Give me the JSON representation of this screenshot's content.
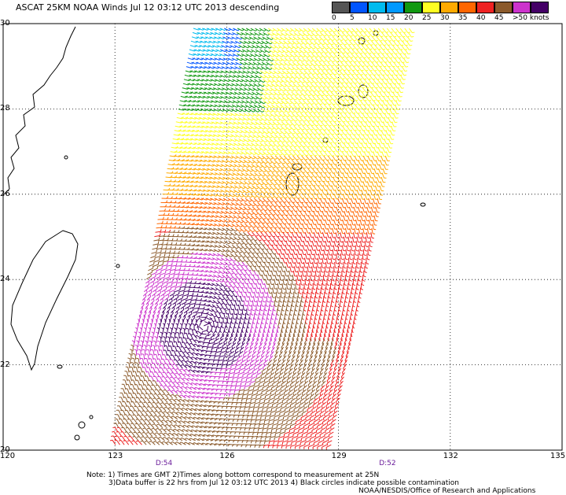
{
  "header": {
    "title": "ASCAT 25KM NOAA Winds  Jul 12 03:12 UTC 2013 descending"
  },
  "legend": {
    "unit": "knots",
    "bins": [
      {
        "label": "0",
        "color": "#555555"
      },
      {
        "label": "5",
        "color": "#0055ff"
      },
      {
        "label": "10",
        "color": "#00bbee"
      },
      {
        "label": "15",
        "color": "#0099ff"
      },
      {
        "label": "20",
        "color": "#119911"
      },
      {
        "label": "25",
        "color": "#ffff22"
      },
      {
        "label": "30",
        "color": "#ffaa00"
      },
      {
        "label": "35",
        "color": "#ff6600"
      },
      {
        "label": "40",
        "color": "#ee2222"
      },
      {
        "label": "45",
        "color": "#8b5a2b"
      },
      {
        "label": ">50",
        "color": "#cc33cc"
      },
      {
        "label": "",
        "color": "#440066"
      }
    ],
    "last_label": ">50 knots"
  },
  "axes": {
    "lon_ticks": [
      "120",
      "123",
      "126",
      "129",
      "132",
      "135"
    ],
    "lat_ticks": [
      "20",
      "22",
      "24",
      "26",
      "28",
      "30"
    ],
    "grid": true
  },
  "swath_times": [
    {
      "label": "D:54",
      "lon": 124.3
    },
    {
      "label": "D:52",
      "lon": 130.3
    }
  ],
  "notes": {
    "line1": "Note: 1) Times are GMT 2)Times along bottom correspond to measurement at 25N",
    "line2": "3)Data buffer is 22 hrs from Jul 12 03:12 UTC 2013 4) Black circles indicate possible contamination",
    "line3": "NOAA/NESDIS/Office of Research and Applications"
  },
  "storm_center": {
    "lon": 125.4,
    "lat": 22.9
  },
  "colors": {
    "land_outline": "#000000",
    "grid_line": "#000000"
  }
}
